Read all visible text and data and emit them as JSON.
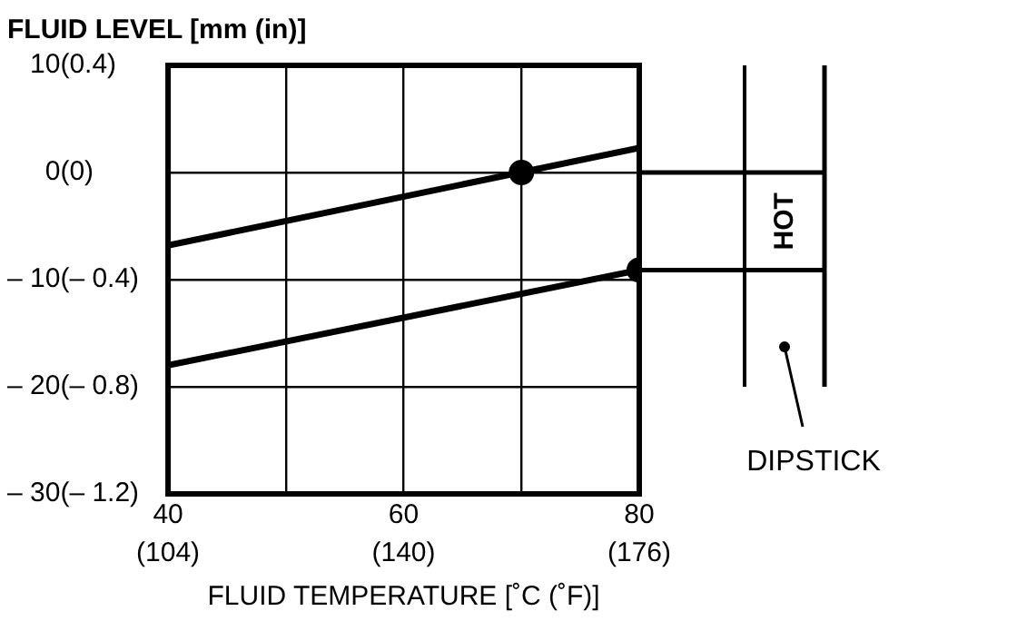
{
  "chart_data": {
    "type": "line",
    "title": "FLUID LEVEL [mm (in)]",
    "xlabel": "FLUID TEMPERATURE [˚C (˚F)]",
    "annotations": [
      "HOT",
      "DIPSTICK"
    ],
    "xlim": [
      40,
      80
    ],
    "xticks": [
      40,
      {
        "value": 50,
        "label": null
      },
      60,
      {
        "value": 70,
        "label": null
      },
      80
    ],
    "x2lim": [
      104,
      176
    ],
    "x2ticks": [
      {
        "value": 104,
        "label": "(104)"
      },
      {
        "value": 140,
        "label": "(140)"
      },
      {
        "value": 176,
        "label": "(176)"
      }
    ],
    "ylim": [
      -30,
      10
    ],
    "yticks": [
      {
        "value": -30,
        "label": "– 30"
      },
      {
        "value": -20,
        "label": "– 20"
      },
      {
        "value": -10,
        "label": "– 10"
      },
      0,
      10
    ],
    "y2lim": [
      -1.2,
      0.4
    ],
    "y2ticks": [
      {
        "value": -1.2,
        "label": "(– 1.2)"
      },
      {
        "value": -0.8,
        "label": "(– 0.8)"
      },
      {
        "value": -0.4,
        "label": "(– 0.4)"
      },
      {
        "value": 0,
        "label": "(0)"
      },
      {
        "value": 0.4,
        "label": "(0.4)"
      }
    ],
    "grid": true,
    "legend": false,
    "marker": "none",
    "line_style": "solid",
    "series": [
      {
        "color": "#000000",
        "x": [
          40,
          80
        ],
        "values": [
          -6.8,
          2.3
        ]
      },
      {
        "color": "#000000",
        "x": [
          40,
          80
        ],
        "values": [
          -18,
          -9.1
        ]
      },
      {
        "type": "scatter",
        "marker": "circle",
        "color": "#000000",
        "x": [
          70,
          80
        ],
        "values": [
          0,
          -9.1
        ]
      }
    ]
  }
}
